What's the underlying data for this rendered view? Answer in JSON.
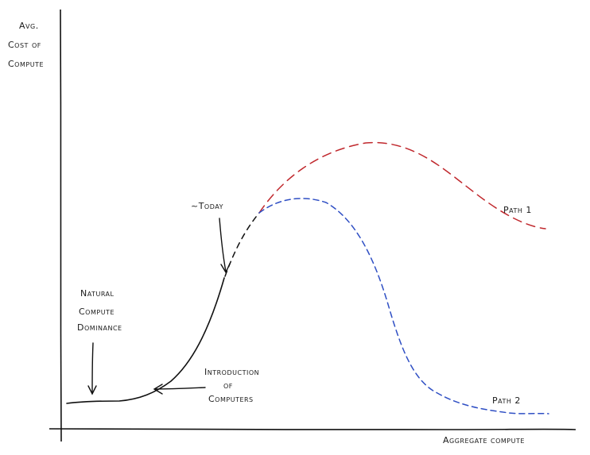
{
  "diagram": {
    "y_axis_label": [
      "Avg.",
      "Cost of",
      "Compute"
    ],
    "x_axis_label": "Aggregate compute",
    "annotations": {
      "natural": [
        "Natural",
        "Compute",
        "Dominance"
      ],
      "intro": [
        "Introduction",
        "of",
        "Computers"
      ],
      "today": "~Today",
      "path1": "Path 1",
      "path2": "Path 2"
    },
    "colors": {
      "ink": "#111111",
      "path1": "#c0282d",
      "path2": "#2f4fc4",
      "background": "#ffffff"
    }
  }
}
